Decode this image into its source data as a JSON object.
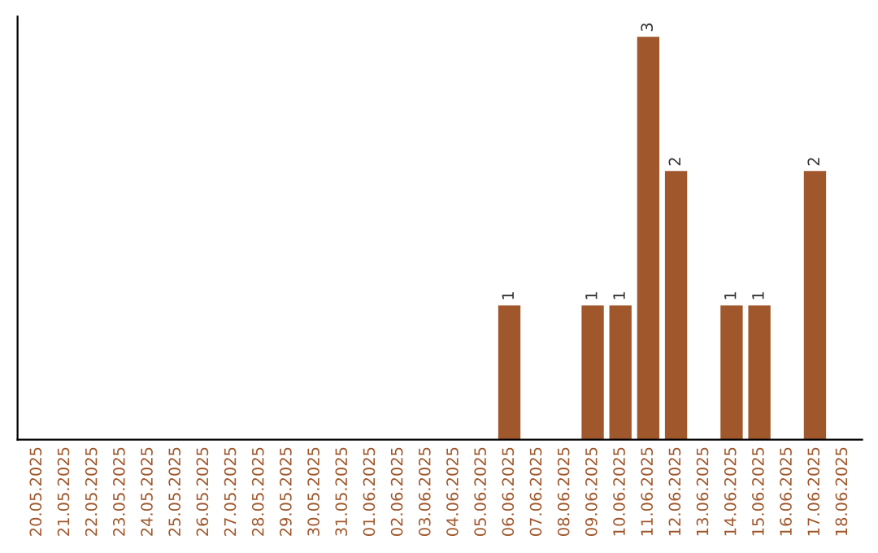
{
  "chart_data": {
    "type": "bar",
    "categories": [
      "20.05.2025",
      "21.05.2025",
      "22.05.2025",
      "23.05.2025",
      "24.05.2025",
      "25.05.2025",
      "26.05.2025",
      "27.05.2025",
      "28.05.2025",
      "29.05.2025",
      "30.05.2025",
      "31.05.2025",
      "01.06.2025",
      "02.06.2025",
      "03.06.2025",
      "04.06.2025",
      "05.06.2025",
      "06.06.2025",
      "07.06.2025",
      "08.06.2025",
      "09.06.2025",
      "10.06.2025",
      "11.06.2025",
      "12.06.2025",
      "13.06.2025",
      "14.06.2025",
      "15.06.2025",
      "16.06.2025",
      "17.06.2025",
      "18.06.2025"
    ],
    "values": [
      null,
      null,
      null,
      null,
      null,
      null,
      null,
      null,
      null,
      null,
      null,
      null,
      null,
      null,
      null,
      null,
      null,
      1,
      null,
      null,
      1,
      1,
      3,
      2,
      null,
      1,
      1,
      null,
      2,
      null
    ],
    "value_labels": [
      null,
      null,
      null,
      null,
      null,
      null,
      null,
      null,
      null,
      null,
      null,
      null,
      null,
      null,
      null,
      null,
      null,
      "1",
      null,
      null,
      "1",
      "1",
      "3",
      "2",
      null,
      "1",
      "1",
      null,
      "2",
      null
    ],
    "color": "#a0572b",
    "tick_labels": "x",
    "grid": false,
    "legend": false
  }
}
